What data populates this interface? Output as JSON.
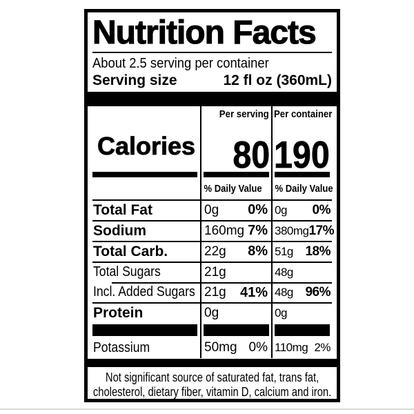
{
  "nutrition_label": {
    "title": "Nutrition Facts",
    "servings_per_container": "About 2.5 serving per container",
    "serving_size_label": "Serving size",
    "serving_size_value": "12 fl oz (360mL)",
    "column_headers": {
      "per_serving": "Per serving",
      "per_container": "Per container"
    },
    "calories": {
      "label": "Calories",
      "per_serving": "80",
      "per_container": "190"
    },
    "daily_value_headers": {
      "per_serving": "% Daily Value",
      "per_container": "% Daily Value"
    },
    "rows": [
      {
        "name": "Total Fat",
        "serving_amount": "0g",
        "serving_dv": "0%",
        "container_amount": "0g",
        "container_dv": "0%"
      },
      {
        "name": "Sodium",
        "serving_amount": "160mg",
        "serving_dv": "7%",
        "container_amount": "380mg",
        "container_dv": "17%"
      },
      {
        "name": "Total Carb.",
        "serving_amount": "22g",
        "serving_dv": "8%",
        "container_amount": "51g",
        "container_dv": "18%"
      },
      {
        "name": "Total Sugars",
        "serving_amount": "21g",
        "serving_dv": "",
        "container_amount": "48g",
        "container_dv": ""
      },
      {
        "name": "Incl. Added Sugars",
        "serving_amount": "21g",
        "serving_dv": "41%",
        "container_amount": "48g",
        "container_dv": "96%"
      },
      {
        "name": "Protein",
        "serving_amount": "0g",
        "serving_dv": "",
        "container_amount": "0g",
        "container_dv": ""
      },
      {
        "name": "Potassium",
        "serving_amount": "50mg",
        "serving_dv": "0%",
        "container_amount": "110mg",
        "container_dv": "2%"
      }
    ],
    "footnote_lines": [
      "Not significant source of saturated fat, trans fat,",
      "cholesterol, dietary fiber, vitamin D, calcium and iron."
    ]
  }
}
